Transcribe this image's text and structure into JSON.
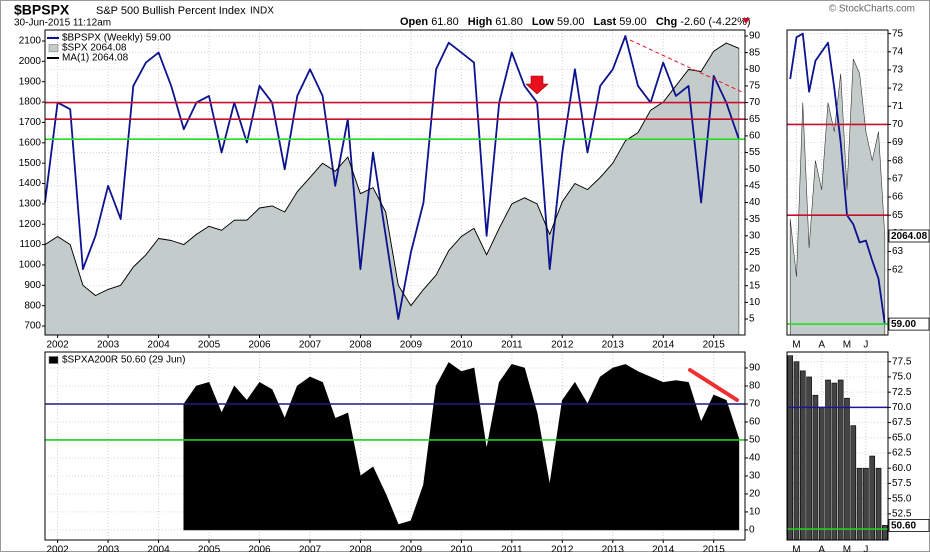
{
  "header": {
    "symbol": "$BPSPX",
    "name": "S&P 500 Bullish Percent Index",
    "exchange": "INDX",
    "date": "30-Jun-2015 11:12am",
    "quote": [
      "Open",
      "61.80",
      "High",
      "61.80",
      "Low",
      "59.00",
      "Last",
      "59.00",
      "Chg",
      "-2.60 (-4.22%)"
    ],
    "credit": "© StockCharts.com"
  },
  "chart_data": [
    {
      "type": "line",
      "x": [
        2001.75,
        2002,
        2002.25,
        2002.5,
        2002.75,
        2003,
        2003.25,
        2003.5,
        2003.75,
        2004,
        2004.25,
        2004.5,
        2004.75,
        2005,
        2005.25,
        2005.5,
        2005.75,
        2006,
        2006.25,
        2006.5,
        2006.75,
        2007,
        2007.25,
        2007.5,
        2007.75,
        2008,
        2008.25,
        2008.5,
        2008.75,
        2009,
        2009.25,
        2009.5,
        2009.75,
        2010,
        2010.25,
        2010.5,
        2010.75,
        2011,
        2011.25,
        2011.5,
        2011.75,
        2012,
        2012.25,
        2012.5,
        2012.75,
        2013,
        2013.25,
        2013.5,
        2013.75,
        2014,
        2014.25,
        2014.5,
        2014.75,
        2015,
        2015.25,
        2015.5
      ],
      "xlim": [
        2001.75,
        2015.62
      ],
      "xticks": [
        2002,
        2003,
        2004,
        2005,
        2006,
        2007,
        2008,
        2009,
        2010,
        2011,
        2012,
        2013,
        2014,
        2015
      ],
      "ylim": [
        656,
        2154
      ],
      "yticks": [
        700,
        800,
        900,
        1000,
        1100,
        1200,
        1300,
        1400,
        1500,
        1600,
        1700,
        1800,
        1900,
        2000,
        2100
      ],
      "y2lim": [
        0.2,
        91.8
      ],
      "y2ticks": [
        5,
        10,
        15,
        20,
        25,
        30,
        35,
        40,
        45,
        50,
        55,
        60,
        65,
        70,
        75,
        80,
        85,
        90
      ],
      "grid": true,
      "series": [
        {
          "name": "$BPSPX (Weekly) 59.00",
          "color": "#0c138f",
          "axis": "y2",
          "values": [
            40,
            70,
            68,
            20,
            30,
            45,
            35,
            75,
            82,
            85,
            75,
            62,
            70,
            72,
            55,
            70,
            58,
            75,
            70,
            50,
            72,
            80,
            72,
            45,
            65,
            20,
            55,
            30,
            5,
            25,
            40,
            80,
            88,
            85,
            82,
            30,
            70,
            85,
            75,
            70,
            20,
            55,
            80,
            55,
            75,
            80,
            90,
            75,
            70,
            82,
            72,
            75,
            40,
            78,
            70,
            59
          ]
        },
        {
          "name": "$SPX 2064.08",
          "color": "#c4cccb",
          "style": "area",
          "values": [
            1100,
            1140,
            1100,
            900,
            850,
            880,
            900,
            990,
            1050,
            1130,
            1120,
            1100,
            1150,
            1190,
            1170,
            1220,
            1220,
            1280,
            1290,
            1260,
            1360,
            1430,
            1500,
            1460,
            1530,
            1350,
            1380,
            1260,
            900,
            800,
            880,
            950,
            1070,
            1140,
            1180,
            1050,
            1180,
            1300,
            1330,
            1300,
            1150,
            1310,
            1400,
            1370,
            1430,
            1500,
            1610,
            1650,
            1760,
            1800,
            1880,
            1960,
            1950,
            2050,
            2090,
            2064.08
          ]
        },
        {
          "name": "MA(1) 2064.08",
          "color": "#000000",
          "values": [
            1100,
            1140,
            1100,
            900,
            850,
            880,
            900,
            990,
            1050,
            1130,
            1120,
            1100,
            1150,
            1190,
            1170,
            1220,
            1220,
            1280,
            1290,
            1260,
            1360,
            1430,
            1500,
            1460,
            1530,
            1350,
            1380,
            1260,
            900,
            800,
            880,
            950,
            1070,
            1140,
            1180,
            1050,
            1180,
            1300,
            1330,
            1300,
            1150,
            1310,
            1400,
            1370,
            1430,
            1500,
            1610,
            1650,
            1760,
            1800,
            1880,
            1960,
            1950,
            2050,
            2090,
            2064.08
          ]
        }
      ],
      "hlines": [
        {
          "value": 70,
          "color": "#c8102e",
          "axis": "y2"
        },
        {
          "value": 65,
          "color": "#c8102e",
          "axis": "y2"
        },
        {
          "value": 59,
          "color": "#22dd22",
          "axis": "y2"
        }
      ]
    },
    {
      "type": "area",
      "x": [
        2001.75,
        2002,
        2002.25,
        2002.5,
        2002.75,
        2003,
        2003.25,
        2003.5,
        2003.75,
        2004,
        2004.25,
        2004.5,
        2004.75,
        2005,
        2005.25,
        2005.5,
        2005.75,
        2006,
        2006.25,
        2006.5,
        2006.75,
        2007,
        2007.25,
        2007.5,
        2007.75,
        2008,
        2008.25,
        2008.5,
        2008.75,
        2009,
        2009.25,
        2009.5,
        2009.75,
        2010,
        2010.25,
        2010.5,
        2010.75,
        2011,
        2011.25,
        2011.5,
        2011.75,
        2012,
        2012.25,
        2012.5,
        2012.75,
        2013,
        2013.25,
        2013.5,
        2013.75,
        2014,
        2014.25,
        2014.5,
        2014.75,
        2015,
        2015.25,
        2015.5
      ],
      "xlim": [
        2001.75,
        2015.62
      ],
      "xticks": [
        2002,
        2003,
        2004,
        2005,
        2006,
        2007,
        2008,
        2009,
        2010,
        2011,
        2012,
        2013,
        2014,
        2015
      ],
      "ylim": [
        -5.6,
        98.9
      ],
      "yticks": [
        0,
        10,
        20,
        30,
        40,
        50,
        60,
        70,
        80,
        90
      ],
      "grid": true,
      "series": [
        {
          "name": "$SPXA200R 50.60 (29 Jun)",
          "color": "#000000",
          "values": [
            null,
            null,
            null,
            null,
            null,
            null,
            null,
            null,
            null,
            null,
            null,
            70,
            80,
            82,
            65,
            80,
            72,
            82,
            78,
            62,
            80,
            85,
            82,
            62,
            65,
            30,
            35,
            20,
            3,
            5,
            25,
            80,
            93,
            88,
            90,
            45,
            82,
            92,
            90,
            65,
            25,
            72,
            82,
            70,
            85,
            90,
            92,
            88,
            85,
            82,
            83,
            82,
            60,
            75,
            72,
            50.6
          ]
        }
      ],
      "hlines": [
        {
          "value": 70,
          "color": "#1a1a8c"
        },
        {
          "value": 50,
          "color": "#22cc22"
        }
      ]
    },
    {
      "type": "line",
      "categories": [
        null,
        "M",
        null,
        null,
        null,
        "A",
        null,
        null,
        null,
        "M",
        null,
        null,
        "J",
        null,
        null,
        null
      ],
      "ylim": [
        58.4,
        75.2
      ],
      "yticks": [
        62,
        63,
        64,
        65,
        66,
        67,
        68,
        69,
        70,
        71,
        72,
        73,
        74,
        75
      ],
      "y2lim": [
        2030,
        2135
      ],
      "grid": true,
      "series": [
        {
          "color": "#c4cccb",
          "style": "area",
          "axis": "y2",
          "last_label": "2064.08",
          "values": [
            2070,
            2050,
            2110,
            2060,
            2090,
            2080,
            2110,
            2100,
            2120,
            2080,
            2125,
            2120,
            2100,
            2090,
            2100,
            2064.08
          ]
        },
        {
          "color": "#0c138f",
          "last_label": "59.00",
          "values": [
            72.5,
            74.8,
            75,
            71.8,
            73.5,
            74,
            74.5,
            72,
            69,
            65,
            64.5,
            63.5,
            63.6,
            62.5,
            61.5,
            59
          ]
        }
      ],
      "hlines": [
        {
          "value": 70,
          "color": "#c8102e"
        },
        {
          "value": 65,
          "color": "#c8102e"
        },
        {
          "value": 59,
          "color": "#22dd22"
        }
      ]
    },
    {
      "type": "bar",
      "categories": [
        null,
        "M",
        null,
        null,
        null,
        "A",
        null,
        null,
        null,
        "M",
        null,
        null,
        "J",
        null,
        null,
        null
      ],
      "ylim": [
        48.2,
        79.1
      ],
      "yticks": [
        {
          "value": 52.5,
          "label": "52.5"
        },
        {
          "value": 55,
          "label": "55.0"
        },
        {
          "value": 57.5,
          "label": "57.5"
        },
        {
          "value": 60,
          "label": "60.0"
        },
        {
          "value": 62.5,
          "label": "62.5"
        },
        {
          "value": 65,
          "label": "65.0"
        },
        {
          "value": 67.5,
          "label": "67.5"
        },
        {
          "value": 70,
          "label": "70.0"
        },
        {
          "value": 72.5,
          "label": "72.5"
        },
        {
          "value": 75,
          "label": "75.0"
        },
        {
          "value": 77.5,
          "label": "77.5"
        }
      ],
      "grid": true,
      "series": [
        {
          "color": "#444444",
          "last_label": "50.60",
          "values": [
            78.5,
            77.5,
            76,
            75,
            72,
            70,
            74.5,
            74,
            74.5,
            71.5,
            67,
            60,
            60,
            62,
            60,
            50.6
          ]
        }
      ],
      "hlines": [
        {
          "value": 70,
          "color": "#1a1a8c"
        },
        {
          "value": 50,
          "color": "#22cc22"
        }
      ]
    }
  ]
}
